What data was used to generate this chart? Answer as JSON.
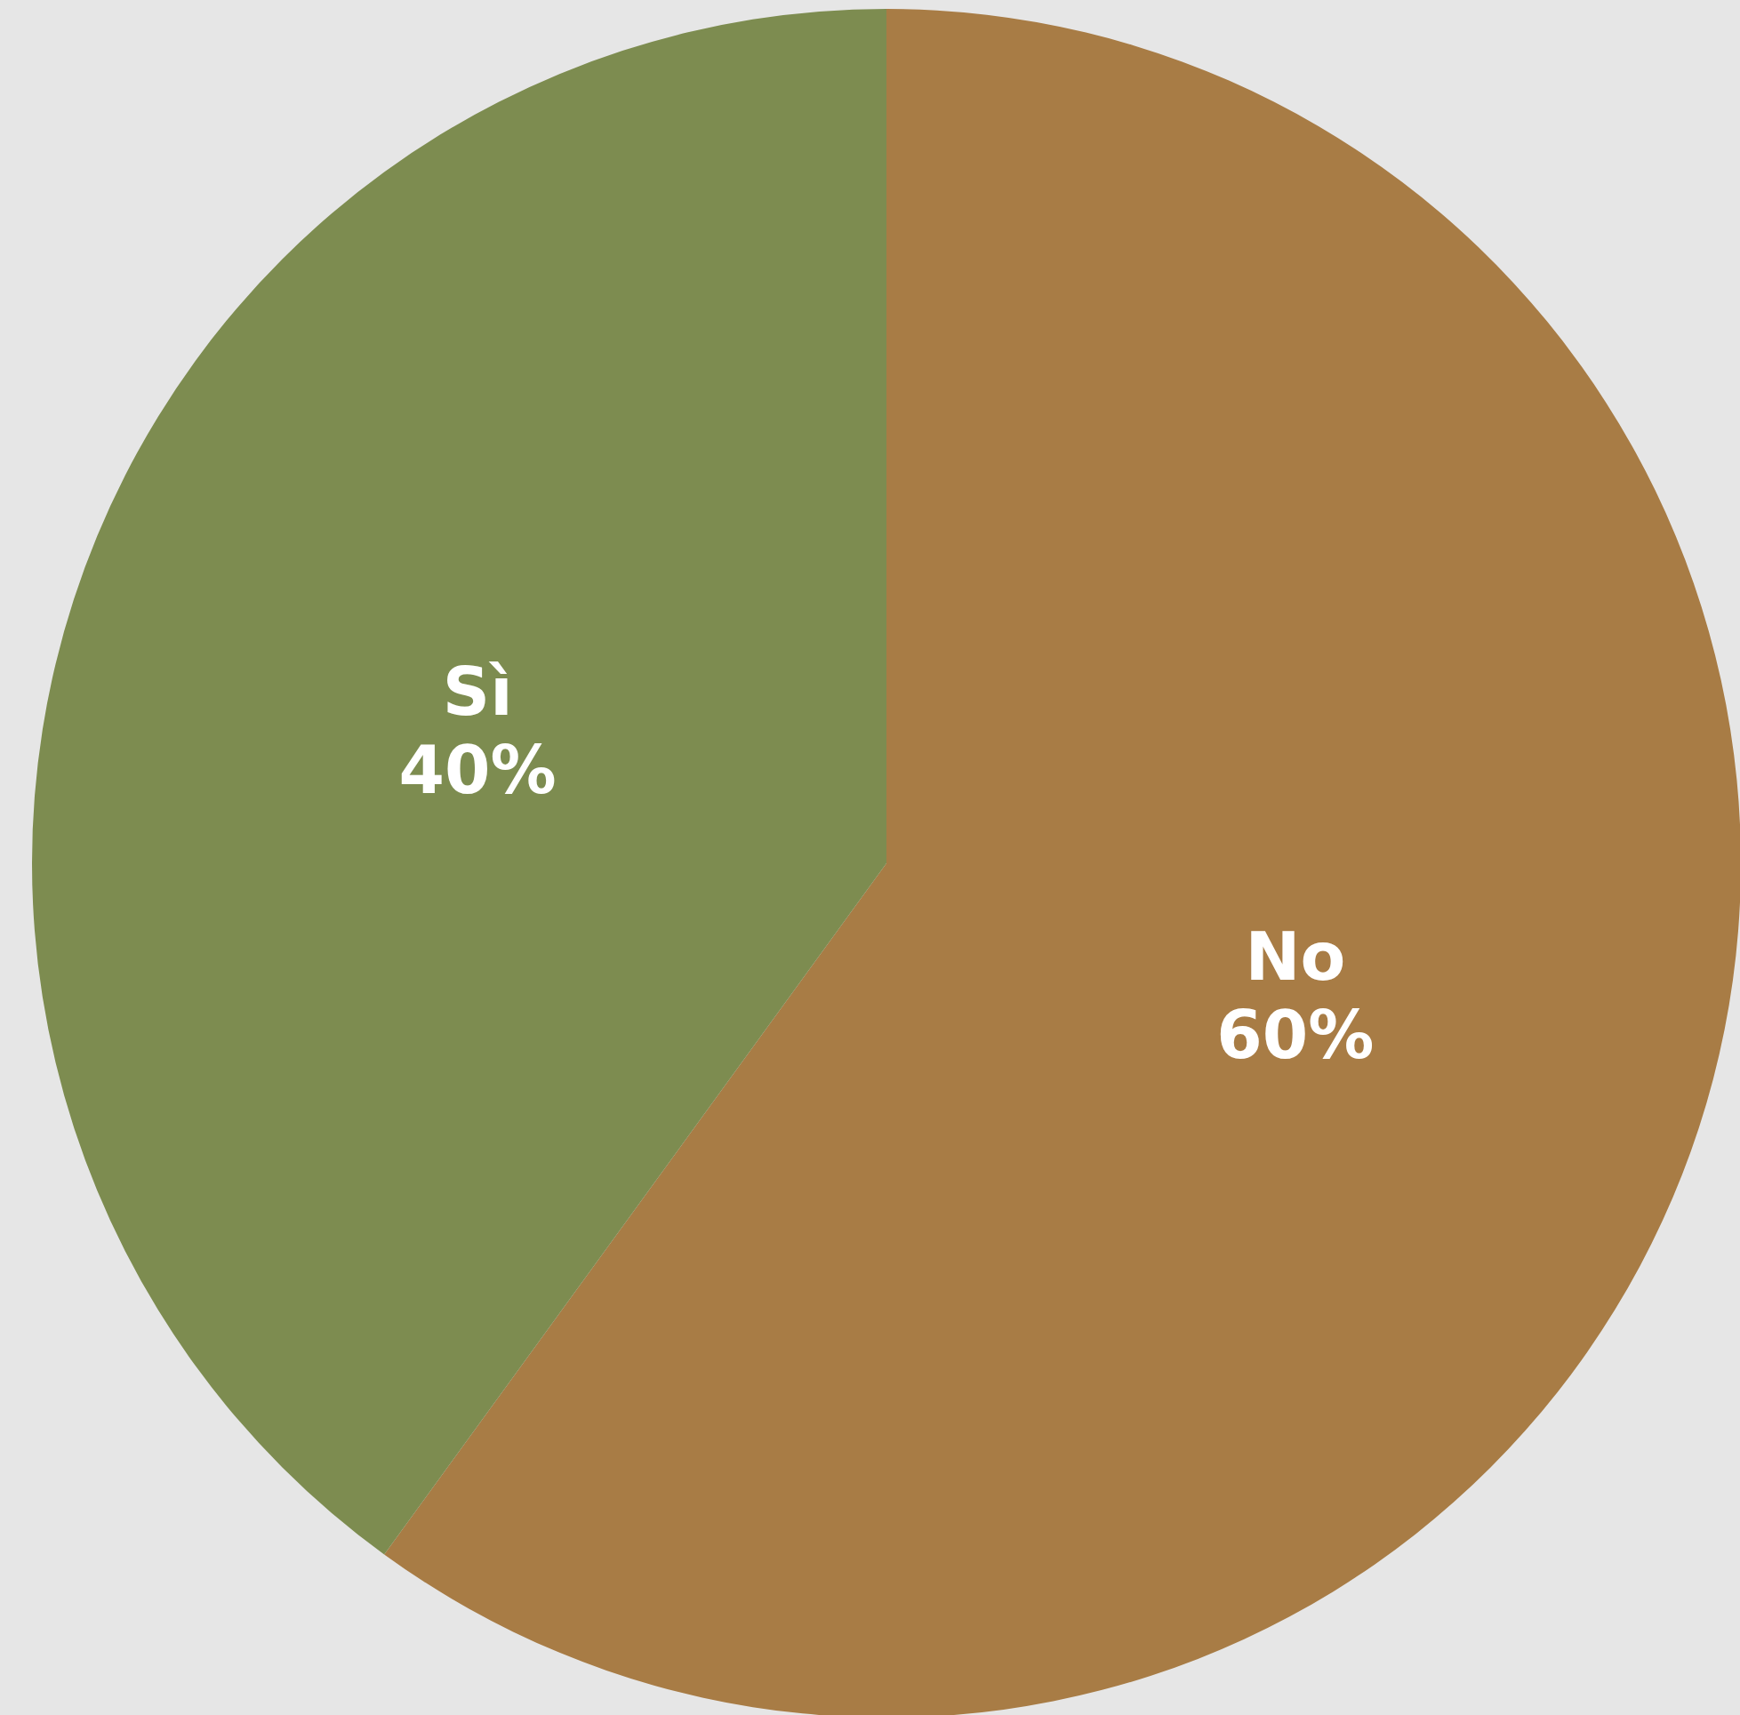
{
  "chart_data": {
    "type": "pie",
    "categories": [
      "No",
      "Sì"
    ],
    "values": [
      60,
      40
    ],
    "value_labels": [
      "60%",
      "40%"
    ],
    "colors": [
      "#a87c45",
      "#7d8c50"
    ],
    "legend": false
  }
}
